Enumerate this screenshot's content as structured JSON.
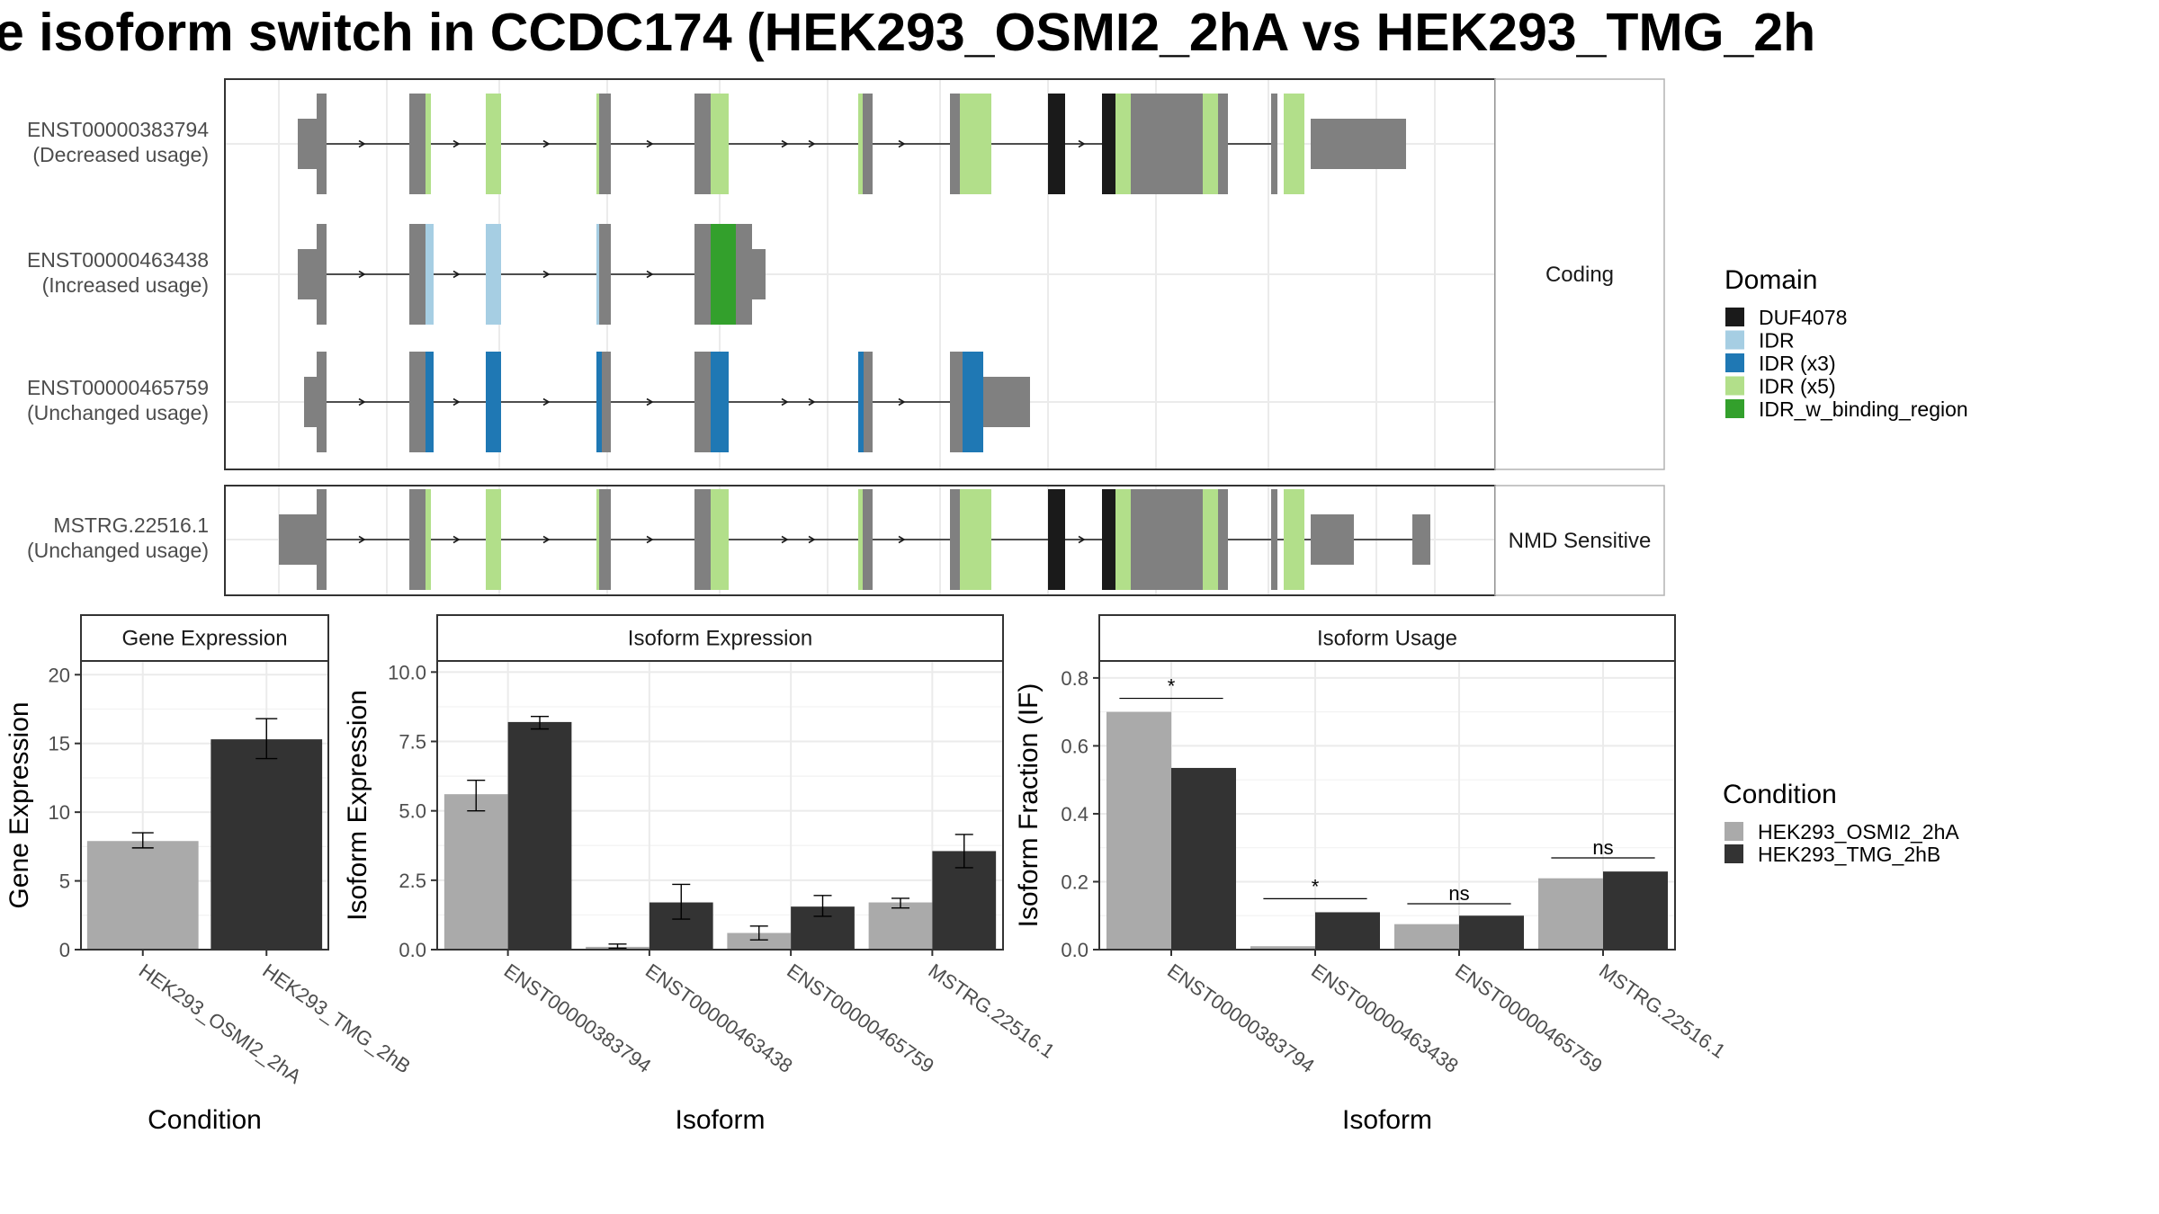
{
  "title": "e isoform switch in CCDC174 (HEK293_OSMI2_2hA vs HEK293_TMG_2h",
  "structure": {
    "facets": [
      "Coding",
      "NMD Sensitive"
    ],
    "transcripts": [
      {
        "id": "ENST00000383794",
        "usage": "(Decreased usage)",
        "facet": "Coding"
      },
      {
        "id": "ENST00000463438",
        "usage": "(Increased usage)",
        "facet": "Coding"
      },
      {
        "id": "ENST00000465759",
        "usage": "(Unchanged usage)",
        "facet": "Coding"
      },
      {
        "id": "MSTRG.22516.1",
        "usage": "(Unchanged usage)",
        "facet": "NMD Sensitive"
      }
    ]
  },
  "domain_legend": {
    "title": "Domain",
    "items": [
      {
        "label": "DUF4078",
        "color": "#1a1a1a"
      },
      {
        "label": "IDR",
        "color": "#a6cee3"
      },
      {
        "label": "IDR (x3)",
        "color": "#1f78b4"
      },
      {
        "label": "IDR (x5)",
        "color": "#b2df8a"
      },
      {
        "label": "IDR_w_binding_region",
        "color": "#33a02c"
      }
    ]
  },
  "condition_legend": {
    "title": "Condition",
    "items": [
      {
        "label": "HEK293_OSMI2_2hA",
        "color": "#aaaaaa"
      },
      {
        "label": "HEK293_TMG_2hB",
        "color": "#333333"
      }
    ]
  },
  "chart_data": [
    {
      "type": "bar",
      "title": "Gene Expression",
      "xlabel": "Condition",
      "ylabel": "Gene Expression",
      "categories": [
        "HEK293_OSMI2_2hA",
        "HEK293_TMG_2hB"
      ],
      "yticks": [
        "0",
        "5",
        "10",
        "15",
        "20"
      ],
      "ylim": [
        0,
        21
      ],
      "values": [
        7.9,
        15.3
      ],
      "errors": [
        [
          7.4,
          8.5
        ],
        [
          13.9,
          16.8
        ]
      ],
      "colors": [
        "#aaaaaa",
        "#333333"
      ]
    },
    {
      "type": "bar",
      "title": "Isoform Expression",
      "xlabel": "Isoform",
      "ylabel": "Isoform Expression",
      "categories": [
        "ENST00000383794",
        "ENST00000463438",
        "ENST00000465759",
        "MSTRG.22516.1"
      ],
      "yticks": [
        "0.0",
        "2.5",
        "5.0",
        "7.5",
        "10.0"
      ],
      "ylim": [
        0,
        10.4
      ],
      "series": [
        {
          "name": "HEK293_OSMI2_2hA",
          "color": "#aaaaaa",
          "values": [
            5.6,
            0.1,
            0.6,
            1.7
          ],
          "errors": [
            [
              5.0,
              6.1
            ],
            [
              0.05,
              0.2
            ],
            [
              0.35,
              0.85
            ],
            [
              1.5,
              1.85
            ]
          ]
        },
        {
          "name": "HEK293_TMG_2hB",
          "color": "#333333",
          "values": [
            8.2,
            1.7,
            1.55,
            3.55
          ],
          "errors": [
            [
              7.95,
              8.4
            ],
            [
              1.1,
              2.35
            ],
            [
              1.2,
              1.95
            ],
            [
              2.95,
              4.15
            ]
          ]
        }
      ]
    },
    {
      "type": "bar",
      "title": "Isoform Usage",
      "xlabel": "Isoform",
      "ylabel": "Isoform Fraction (IF)",
      "categories": [
        "ENST00000383794",
        "ENST00000463438",
        "ENST00000465759",
        "MSTRG.22516.1"
      ],
      "yticks": [
        "0.0",
        "0.2",
        "0.4",
        "0.6",
        "0.8"
      ],
      "ylim": [
        0,
        0.85
      ],
      "series": [
        {
          "name": "HEK293_OSMI2_2hA",
          "color": "#aaaaaa",
          "values": [
            0.7,
            0.01,
            0.075,
            0.21
          ]
        },
        {
          "name": "HEK293_TMG_2hB",
          "color": "#333333",
          "values": [
            0.535,
            0.11,
            0.1,
            0.23
          ]
        }
      ],
      "significance": [
        "*",
        "*",
        "ns",
        "ns"
      ],
      "significance_y": [
        0.74,
        0.15,
        0.135,
        0.27
      ]
    }
  ]
}
